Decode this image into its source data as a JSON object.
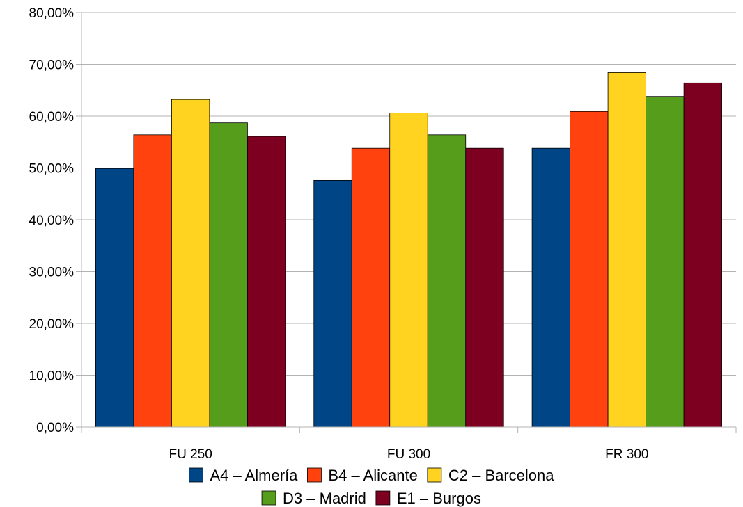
{
  "chart_data": {
    "type": "bar",
    "categories": [
      "FU 250",
      "FU 300",
      "FR 300"
    ],
    "series": [
      {
        "name": "A4 – Almería",
        "color": "#004586",
        "values": [
          0.499,
          0.476,
          0.538
        ]
      },
      {
        "name": "B4 – Alicante",
        "color": "#ff420e",
        "values": [
          0.564,
          0.538,
          0.609
        ]
      },
      {
        "name": "C2 – Barcelona",
        "color": "#ffd320",
        "values": [
          0.632,
          0.606,
          0.684
        ]
      },
      {
        "name": "D3 – Madrid",
        "color": "#579d1c",
        "values": [
          0.587,
          0.564,
          0.638
        ]
      },
      {
        "name": "E1 – Burgos",
        "color": "#7e0021",
        "values": [
          0.561,
          0.538,
          0.664
        ]
      }
    ],
    "yticks": [
      "0,00%",
      "10,00%",
      "20,00%",
      "30,00%",
      "40,00%",
      "50,00%",
      "60,00%",
      "70,00%",
      "80,00%"
    ],
    "ylim": [
      0,
      0.8
    ],
    "grid": true,
    "legend_position": "bottom"
  }
}
